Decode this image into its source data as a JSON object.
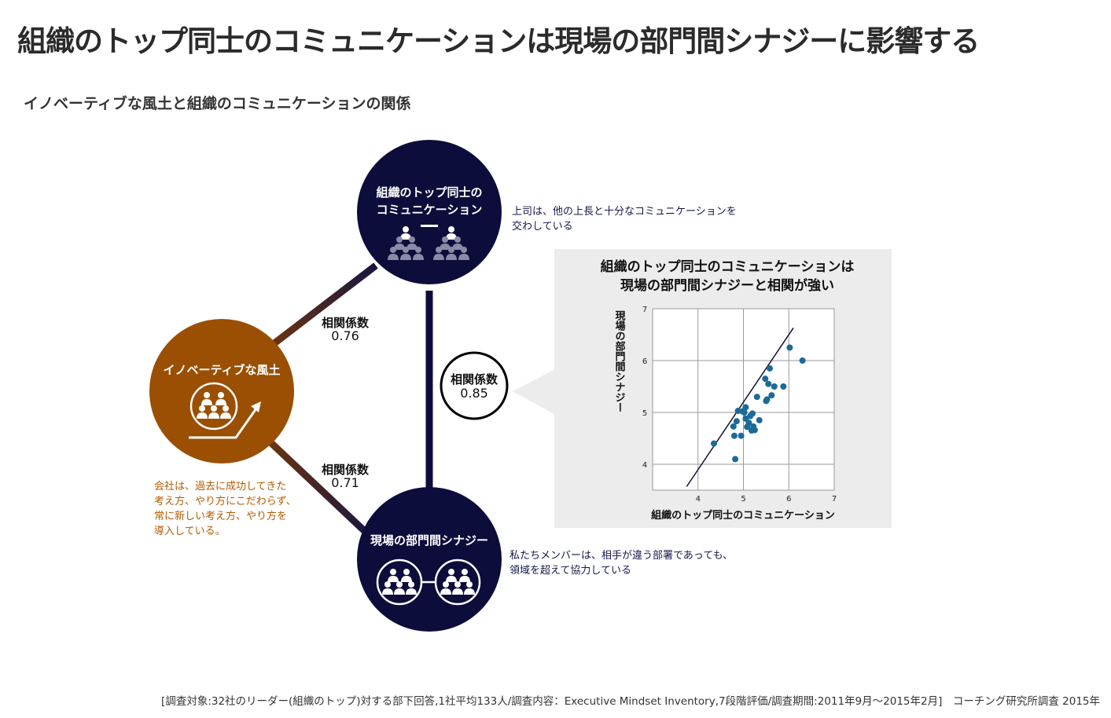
{
  "page": {
    "title": "組織のトップ同士のコミュニケーションは現場の部門間シナジーに影響する",
    "subtitle": "イノベーティブな風土と組織のコミュニケーションの関係"
  },
  "nodes": {
    "top": {
      "line1": "組織のトップ同士の",
      "line2": "コミュニケーション",
      "description": [
        "上司は、他の上長と十分なコミュニケーションを",
        "交わしている"
      ]
    },
    "left": {
      "label": "イノベーティブな風土",
      "description": [
        "会社は、過去に成功してきた",
        "考え方、やり方にこだわらず、",
        "常に新しい考え方、やり方を",
        "導入している。"
      ]
    },
    "bottom": {
      "label": "現場の部門間シナジー",
      "description": [
        "私たちメンバーは、相手が違う部署であっても、",
        "領域を超えて協力している"
      ]
    }
  },
  "correlations": {
    "left_top": {
      "label": "相関係数",
      "value": "0.76"
    },
    "left_bottom": {
      "label": "相関係数",
      "value": "0.71"
    },
    "top_bottom": {
      "label": "相関係数",
      "value": "0.85"
    }
  },
  "colors": {
    "navy": "#0d0d3c",
    "orange": "#9a4f03",
    "dot": "#1b6a97",
    "panel": "#ececec"
  },
  "chart_data": {
    "type": "scatter",
    "title_lines": [
      "組織のトップ同士のコミュニケーションは",
      "現場の部門間シナジーと相関が強い"
    ],
    "xlabel": "組織のトップ同士のコミュニケーション",
    "ylabel": "現場の部門間シナジー",
    "xlim": [
      3,
      7
    ],
    "ylim": [
      3.5,
      7
    ],
    "xticks": [
      4,
      5,
      6,
      7
    ],
    "yticks": [
      4,
      5,
      6,
      7
    ],
    "grid": true,
    "trendline": [
      [
        3.75,
        3.57
      ],
      [
        6.1,
        6.63
      ]
    ],
    "points": [
      [
        6.02,
        6.25
      ],
      [
        6.3,
        6.0
      ],
      [
        5.58,
        5.85
      ],
      [
        5.48,
        5.65
      ],
      [
        5.88,
        5.5
      ],
      [
        5.68,
        5.5
      ],
      [
        5.55,
        5.55
      ],
      [
        5.62,
        5.33
      ],
      [
        5.52,
        5.25
      ],
      [
        5.5,
        5.22
      ],
      [
        5.3,
        5.3
      ],
      [
        5.05,
        5.1
      ],
      [
        4.98,
        5.02
      ],
      [
        4.88,
        5.03
      ],
      [
        5.02,
        5.0
      ],
      [
        4.85,
        4.83
      ],
      [
        4.78,
        4.73
      ],
      [
        5.2,
        4.98
      ],
      [
        5.15,
        4.93
      ],
      [
        5.35,
        4.85
      ],
      [
        5.05,
        4.88
      ],
      [
        5.12,
        4.8
      ],
      [
        5.22,
        4.73
      ],
      [
        5.18,
        4.65
      ],
      [
        5.25,
        4.66
      ],
      [
        4.8,
        4.55
      ],
      [
        4.95,
        4.55
      ],
      [
        4.35,
        4.4
      ],
      [
        4.82,
        4.1
      ],
      [
        5.08,
        4.72
      ]
    ]
  },
  "footer": "[調査対象:32社のリーダー(組織のトップ)対する部下回答,1社平均133人/調査内容：Executive Mindset Inventory,7段階評価/調査期間:2011年9月～2015年2月]　コーチング研究所調査 2015年"
}
